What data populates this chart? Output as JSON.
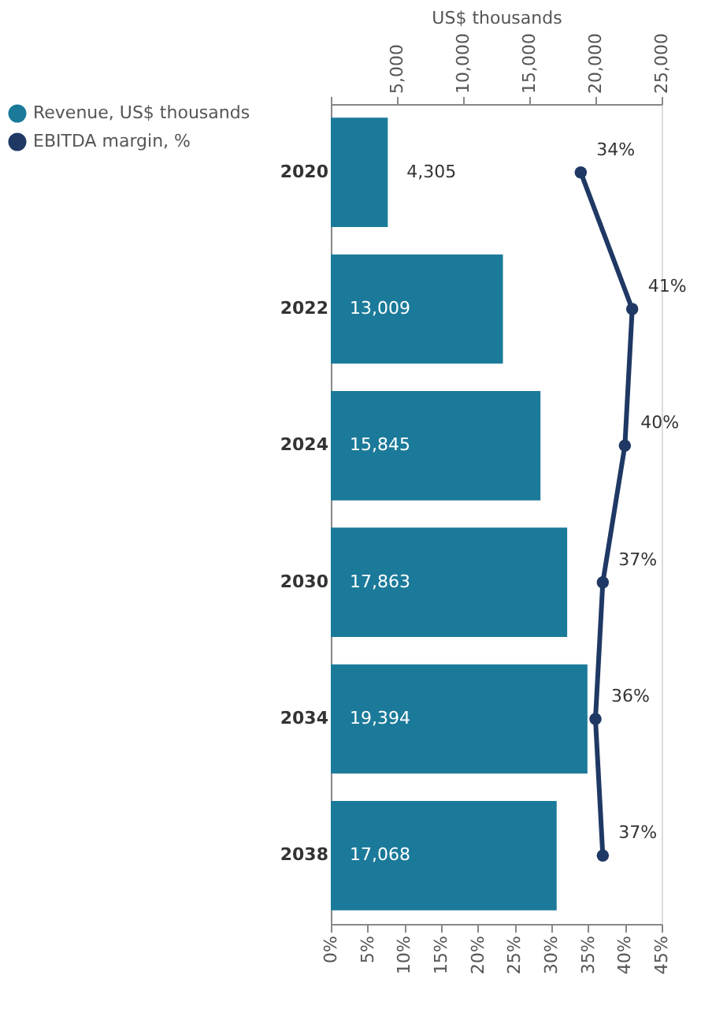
{
  "chart_data": {
    "type": "bar",
    "orientation": "horizontal",
    "categories": [
      "2020",
      "2022",
      "2024",
      "2030",
      "2034",
      "2038"
    ],
    "x2label": "US$ thousands",
    "x2lim": [
      0,
      25000
    ],
    "x2ticks": [
      {
        "value": 0,
        "label": null
      },
      {
        "value": 5000,
        "label": "5,000"
      },
      {
        "value": 10000,
        "label": "10,000"
      },
      {
        "value": 15000,
        "label": "15,000"
      },
      {
        "value": 20000,
        "label": "20,000"
      },
      {
        "value": 25000,
        "label": "25,000"
      }
    ],
    "xlim": [
      0,
      45
    ],
    "xticks": [
      {
        "value": 0,
        "label": "0%"
      },
      {
        "value": 5,
        "label": "5%"
      },
      {
        "value": 10,
        "label": "10%"
      },
      {
        "value": 15,
        "label": "15%"
      },
      {
        "value": 20,
        "label": "20%"
      },
      {
        "value": 25,
        "label": "25%"
      },
      {
        "value": 30,
        "label": "30%"
      },
      {
        "value": 35,
        "label": "35%"
      },
      {
        "value": 40,
        "label": "40%"
      },
      {
        "value": 45,
        "label": "45%"
      }
    ],
    "series": [
      {
        "name": "Revenue, US$ thousands",
        "axis": "x2",
        "color": "#1b7a9a",
        "values": [
          4305,
          13009,
          15845,
          17863,
          19394,
          17068
        ],
        "value_labels": [
          "4,305",
          "13,009",
          "15,845",
          "17,863",
          "19,394",
          "17,068"
        ]
      },
      {
        "name": "EBITDA margin, %",
        "type": "line",
        "color": "#1f3864",
        "marker": "circle",
        "values": [
          34,
          41,
          40,
          37,
          36,
          37
        ],
        "value_labels": [
          "34%",
          "41%",
          "40%",
          "37%",
          "36%",
          "37%"
        ]
      }
    ],
    "legend": "left",
    "grid": false
  }
}
